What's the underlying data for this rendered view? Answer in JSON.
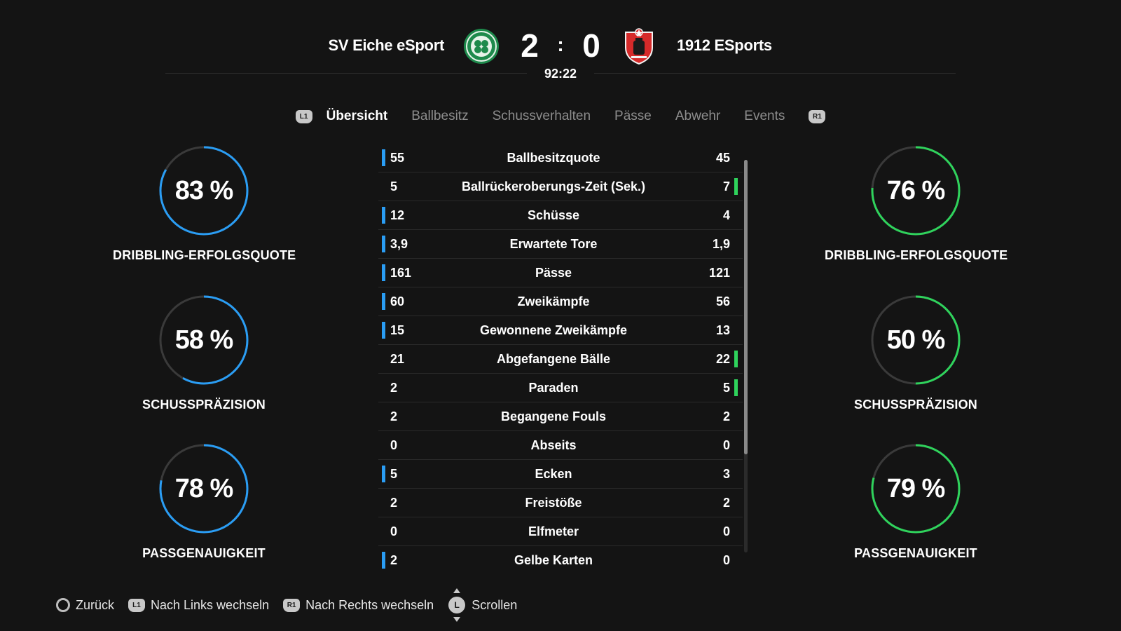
{
  "match": {
    "home_team": "SV Eiche eSport",
    "away_team": "1912 ESports",
    "home_score": "2",
    "separator": ":",
    "away_score": "0",
    "clock": "92:22",
    "home_crest": "celtic-style-crest-icon",
    "away_crest": "red-shield-crest-icon"
  },
  "tabs": {
    "left_button": "L1",
    "right_button": "R1",
    "items": [
      {
        "label": "Übersicht",
        "active": true
      },
      {
        "label": "Ballbesitz",
        "active": false
      },
      {
        "label": "Schussverhalten",
        "active": false
      },
      {
        "label": "Pässe",
        "active": false
      },
      {
        "label": "Abwehr",
        "active": false
      },
      {
        "label": "Events",
        "active": false
      }
    ]
  },
  "colors": {
    "home_accent": "#2a9df4",
    "away_accent": "#2fd35c",
    "ring_track": "#3a3a3a",
    "background": "#141414"
  },
  "home_rings": [
    {
      "value": "83 %",
      "fraction": 0.83,
      "label": "DRIBBLING-ERFOLGSQUOTE"
    },
    {
      "value": "58 %",
      "fraction": 0.58,
      "label": "SCHUSSPRÄZISION"
    },
    {
      "value": "78 %",
      "fraction": 0.78,
      "label": "PASSGENAUIGKEIT"
    }
  ],
  "away_rings": [
    {
      "value": "76 %",
      "fraction": 0.76,
      "label": "DRIBBLING-ERFOLGSQUOTE"
    },
    {
      "value": "50 %",
      "fraction": 0.5,
      "label": "SCHUSSPRÄZISION"
    },
    {
      "value": "79 %",
      "fraction": 0.79,
      "label": "PASSGENAUIGKEIT"
    }
  ],
  "stats": [
    {
      "home": "55",
      "label": "Ballbesitzquote",
      "away": "45",
      "leader": "home"
    },
    {
      "home": "5",
      "label": "Ballrückeroberungs-Zeit (Sek.)",
      "away": "7",
      "leader": "away"
    },
    {
      "home": "12",
      "label": "Schüsse",
      "away": "4",
      "leader": "home"
    },
    {
      "home": "3,9",
      "label": "Erwartete Tore",
      "away": "1,9",
      "leader": "home"
    },
    {
      "home": "161",
      "label": "Pässe",
      "away": "121",
      "leader": "home"
    },
    {
      "home": "60",
      "label": "Zweikämpfe",
      "away": "56",
      "leader": "home"
    },
    {
      "home": "15",
      "label": "Gewonnene Zweikämpfe",
      "away": "13",
      "leader": "home"
    },
    {
      "home": "21",
      "label": "Abgefangene Bälle",
      "away": "22",
      "leader": "away"
    },
    {
      "home": "2",
      "label": "Paraden",
      "away": "5",
      "leader": "away"
    },
    {
      "home": "2",
      "label": "Begangene Fouls",
      "away": "2",
      "leader": "none"
    },
    {
      "home": "0",
      "label": "Abseits",
      "away": "0",
      "leader": "none"
    },
    {
      "home": "5",
      "label": "Ecken",
      "away": "3",
      "leader": "home"
    },
    {
      "home": "2",
      "label": "Freistöße",
      "away": "2",
      "leader": "none"
    },
    {
      "home": "0",
      "label": "Elfmeter",
      "away": "0",
      "leader": "none"
    },
    {
      "home": "2",
      "label": "Gelbe Karten",
      "away": "0",
      "leader": "home"
    }
  ],
  "footer": {
    "back_label": "Zurück",
    "left_button": "L1",
    "left_label": "Nach Links wechseln",
    "right_button": "R1",
    "right_label": "Nach Rechts wechseln",
    "stick_button": "L",
    "scroll_label": "Scrollen"
  }
}
